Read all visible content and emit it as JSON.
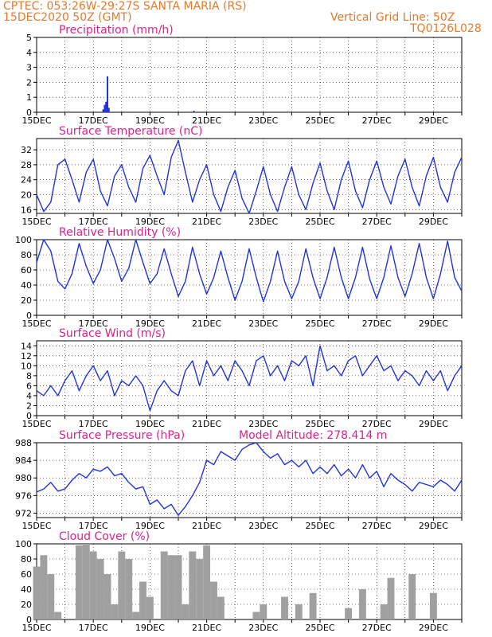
{
  "header": {
    "line1_left": "CPTEC:   053:26W-29:27S   SANTA MARIA (RS)",
    "line2_left": "15DEC2020 50Z (GMT)",
    "line1_right": "Vertical Grid Line: 50Z",
    "line2_right": "TQ0126L028"
  },
  "colors": {
    "header": "#e8792a",
    "title": "#e0208a",
    "line": "#2233dd",
    "bar_precip": "#2233dd",
    "bar_cloud": "#a0a0a0",
    "grid": "#000000"
  },
  "x_tick_labels": [
    "15DEC",
    "17DEC",
    "19DEC",
    "21DEC",
    "23DEC",
    "25DEC",
    "27DEC",
    "29DEC"
  ],
  "x_day_range": [
    0,
    15
  ],
  "chart_data": [
    {
      "type": "bar",
      "title": "Precipitation (mm/h)",
      "ylim": [
        0,
        5
      ],
      "yticks": [
        0,
        1,
        2,
        3,
        4,
        5
      ],
      "x": [
        2.35,
        2.4,
        2.45,
        2.5,
        2.55,
        5.55
      ],
      "values": [
        0.2,
        0.5,
        0.7,
        2.4,
        0.3,
        0.1
      ]
    },
    {
      "type": "line",
      "title": "Surface Temperature (nC)",
      "ylim": [
        15,
        35
      ],
      "yticks": [
        16,
        20,
        24,
        28,
        32
      ],
      "x": [
        0,
        0.25,
        0.5,
        0.75,
        1.0,
        1.25,
        1.5,
        1.75,
        2.0,
        2.25,
        2.5,
        2.75,
        3.0,
        3.25,
        3.5,
        3.75,
        4.0,
        4.25,
        4.5,
        4.75,
        5.0,
        5.25,
        5.5,
        5.75,
        6.0,
        6.25,
        6.5,
        6.75,
        7.0,
        7.25,
        7.5,
        7.75,
        8.0,
        8.25,
        8.5,
        8.75,
        9.0,
        9.25,
        9.5,
        9.75,
        10.0,
        10.25,
        10.5,
        10.75,
        11.0,
        11.25,
        11.5,
        11.75,
        12.0,
        12.25,
        12.5,
        12.75,
        13.0,
        13.25,
        13.5,
        13.75,
        14.0,
        14.25,
        14.5,
        14.75,
        15.0
      ],
      "values": [
        20,
        15.5,
        18,
        28,
        29.5,
        24,
        18,
        26,
        29.5,
        21,
        17,
        25,
        28,
        22,
        18,
        27,
        30.5,
        25,
        20,
        30,
        34.5,
        26,
        18,
        24,
        28,
        20,
        15.5,
        22,
        26.5,
        19,
        15,
        21,
        27.5,
        20,
        15.5,
        22,
        27.5,
        20,
        16,
        23,
        28.5,
        21,
        16,
        24,
        29,
        21,
        16.5,
        24,
        29,
        22,
        17.5,
        25,
        29.5,
        22,
        17,
        25,
        30,
        22,
        18,
        26,
        30
      ]
    },
    {
      "type": "line",
      "title": "Relative Humidity (%)",
      "ylim": [
        0,
        100
      ],
      "yticks": [
        0,
        20,
        40,
        60,
        80,
        100
      ],
      "x": [
        0,
        0.25,
        0.5,
        0.75,
        1.0,
        1.25,
        1.5,
        1.75,
        2.0,
        2.25,
        2.5,
        2.75,
        3.0,
        3.25,
        3.5,
        3.75,
        4.0,
        4.25,
        4.5,
        4.75,
        5.0,
        5.25,
        5.5,
        5.75,
        6.0,
        6.25,
        6.5,
        6.75,
        7.0,
        7.25,
        7.5,
        7.75,
        8.0,
        8.25,
        8.5,
        8.75,
        9.0,
        9.25,
        9.5,
        9.75,
        10.0,
        10.25,
        10.5,
        10.75,
        11.0,
        11.25,
        11.5,
        11.75,
        12.0,
        12.25,
        12.5,
        12.75,
        13.0,
        13.25,
        13.5,
        13.75,
        14.0,
        14.25,
        14.5,
        14.75,
        15.0
      ],
      "values": [
        70,
        100,
        85,
        45,
        35,
        55,
        95,
        65,
        42,
        60,
        100,
        75,
        45,
        62,
        100,
        70,
        42,
        55,
        88,
        55,
        25,
        45,
        90,
        55,
        28,
        50,
        85,
        50,
        20,
        45,
        88,
        50,
        18,
        45,
        85,
        45,
        22,
        45,
        88,
        50,
        22,
        50,
        90,
        50,
        22,
        50,
        90,
        48,
        22,
        50,
        92,
        50,
        25,
        55,
        95,
        50,
        22,
        55,
        98,
        50,
        32
      ]
    },
    {
      "type": "line",
      "title": "Surface Wind (m/s)",
      "ylim": [
        0,
        15
      ],
      "yticks": [
        0,
        2,
        4,
        6,
        8,
        10,
        12,
        14
      ],
      "x": [
        0,
        0.25,
        0.5,
        0.75,
        1.0,
        1.25,
        1.5,
        1.75,
        2.0,
        2.25,
        2.5,
        2.75,
        3.0,
        3.25,
        3.5,
        3.75,
        4.0,
        4.25,
        4.5,
        4.75,
        5.0,
        5.25,
        5.5,
        5.75,
        6.0,
        6.25,
        6.5,
        6.75,
        7.0,
        7.25,
        7.5,
        7.75,
        8.0,
        8.25,
        8.5,
        8.75,
        9.0,
        9.25,
        9.5,
        9.75,
        10.0,
        10.25,
        10.5,
        10.75,
        11.0,
        11.25,
        11.5,
        11.75,
        12.0,
        12.25,
        12.5,
        12.75,
        13.0,
        13.25,
        13.5,
        13.75,
        14.0,
        14.25,
        14.5,
        14.75,
        15.0
      ],
      "values": [
        5,
        4,
        6,
        4,
        7,
        9,
        5,
        8,
        10,
        7,
        9,
        4,
        7,
        6,
        8,
        6,
        1,
        5,
        7,
        5,
        4,
        9,
        11,
        6,
        11,
        8,
        10,
        7,
        11,
        9,
        6,
        11,
        12,
        8,
        10,
        7,
        11,
        10,
        12,
        6,
        14,
        9,
        10,
        8,
        11,
        12,
        8,
        10,
        12,
        9,
        10,
        7,
        9,
        8,
        6,
        9,
        7,
        9,
        5,
        8,
        10
      ]
    },
    {
      "type": "line",
      "title": "Surface Pressure (hPa)",
      "annotation": "Model Altitude: 278.414  m",
      "ylim": [
        971,
        988
      ],
      "yticks": [
        972,
        976,
        980,
        984,
        988
      ],
      "x": [
        0,
        0.25,
        0.5,
        0.75,
        1.0,
        1.25,
        1.5,
        1.75,
        2.0,
        2.25,
        2.5,
        2.75,
        3.0,
        3.25,
        3.5,
        3.75,
        4.0,
        4.25,
        4.5,
        4.75,
        5.0,
        5.25,
        5.5,
        5.75,
        6.0,
        6.25,
        6.5,
        6.75,
        7.0,
        7.25,
        7.5,
        7.75,
        8.0,
        8.25,
        8.5,
        8.75,
        9.0,
        9.25,
        9.5,
        9.75,
        10.0,
        10.25,
        10.5,
        10.75,
        11.0,
        11.25,
        11.5,
        11.75,
        12.0,
        12.25,
        12.5,
        12.75,
        13.0,
        13.25,
        13.5,
        13.75,
        14.0,
        14.25,
        14.5,
        14.75,
        15.0
      ],
      "values": [
        976.8,
        977.5,
        979,
        977,
        977.5,
        979.5,
        981,
        980,
        982,
        981.5,
        982.5,
        980.5,
        981,
        979,
        977.5,
        978,
        974,
        975,
        973,
        974,
        971.5,
        973.5,
        976,
        979,
        984,
        983,
        986,
        985,
        984,
        986.5,
        987.5,
        988,
        986,
        984.5,
        985.5,
        983,
        984,
        982.5,
        984,
        981,
        982.5,
        981,
        983,
        980.5,
        982,
        980,
        983,
        980,
        981.5,
        978,
        981,
        979.5,
        978.5,
        977,
        979,
        978.5,
        978,
        979.5,
        978.5,
        977,
        979.5
      ]
    },
    {
      "type": "area",
      "title": "Cloud Cover (%)",
      "ylim": [
        0,
        100
      ],
      "yticks": [
        0,
        20,
        40,
        60,
        80,
        100
      ],
      "x": [
        0,
        0.25,
        0.5,
        0.75,
        1.0,
        1.25,
        1.5,
        1.75,
        2.0,
        2.25,
        2.5,
        2.75,
        3.0,
        3.25,
        3.5,
        3.75,
        4.0,
        4.25,
        4.5,
        4.75,
        5.0,
        5.25,
        5.5,
        5.75,
        6.0,
        6.25,
        6.5,
        6.75,
        7.0,
        7.25,
        7.5,
        7.75,
        8.0,
        8.25,
        8.5,
        8.75,
        9.0,
        9.25,
        9.5,
        9.75,
        10.0,
        10.25,
        10.5,
        10.75,
        11.0,
        11.25,
        11.5,
        11.75,
        12.0,
        12.25,
        12.5,
        12.75,
        13.0,
        13.25,
        13.5,
        13.75,
        14.0,
        14.25,
        14.5,
        14.75,
        15.0
      ],
      "values": [
        70,
        85,
        60,
        10,
        0,
        0,
        98,
        100,
        90,
        80,
        60,
        20,
        90,
        80,
        10,
        50,
        30,
        0,
        90,
        85,
        85,
        20,
        90,
        80,
        98,
        50,
        30,
        0,
        0,
        0,
        0,
        10,
        20,
        0,
        0,
        30,
        0,
        20,
        0,
        35,
        0,
        0,
        0,
        0,
        15,
        0,
        40,
        0,
        0,
        20,
        55,
        0,
        0,
        60,
        0,
        0,
        35,
        0,
        0,
        0,
        0
      ]
    }
  ]
}
